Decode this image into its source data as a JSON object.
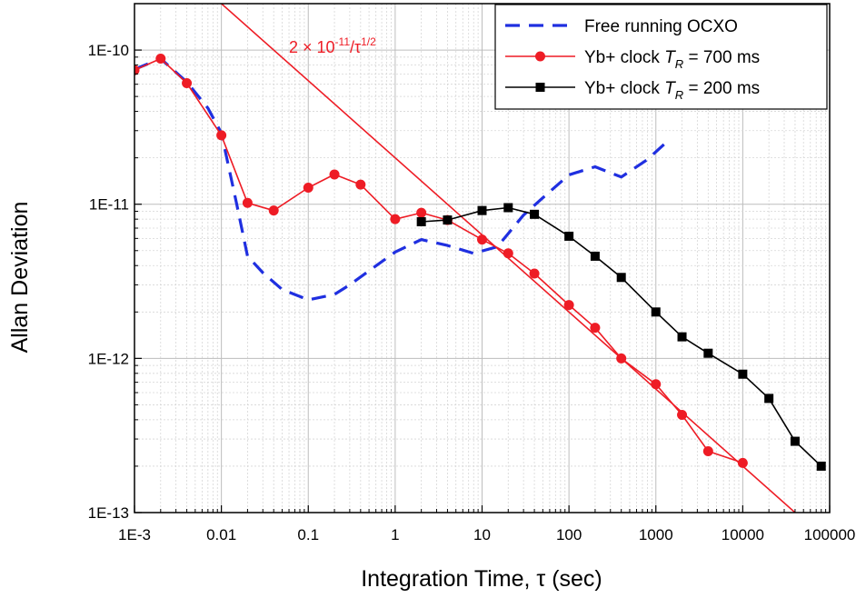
{
  "chart_data": {
    "type": "line",
    "xlabel": "Integration Time, τ (sec)",
    "ylabel": "Allan Deviation",
    "xscale": "log",
    "yscale": "log",
    "xlim": [
      0.001,
      100000
    ],
    "ylim": [
      1e-13,
      2e-10
    ],
    "xticks": [
      0.001,
      0.01,
      0.1,
      1,
      10,
      100,
      1000,
      10000,
      100000
    ],
    "xtick_labels": [
      "1E-3",
      "0.01",
      "0.1",
      "1",
      "10",
      "100",
      "1000",
      "10000",
      "100000"
    ],
    "yticks": [
      1e-13,
      1e-12,
      1e-11,
      1e-10
    ],
    "ytick_labels": [
      "1E-13",
      "1E-12",
      "1E-11",
      "1E-10"
    ],
    "grid": true,
    "legend_position": "top-right",
    "annotation": {
      "text": "2 × 10",
      "exp1": "-11",
      "mid": "/τ",
      "exp2": "1/2",
      "color": "#ee1c25"
    },
    "reference_line": {
      "coefficient": 2e-11,
      "exponent": -0.5,
      "color": "#ee1c25"
    },
    "series": [
      {
        "name": "Free running OCXO",
        "legend_text": "Free running OCXO",
        "style": "dashed",
        "color": "#1f2fe0",
        "x": [
          0.001,
          0.002,
          0.004,
          0.007,
          0.01,
          0.015,
          0.02,
          0.03,
          0.05,
          0.1,
          0.2,
          0.3,
          0.5,
          1,
          2,
          4,
          8,
          15,
          30,
          50,
          100,
          200,
          400,
          800,
          1300
        ],
        "y": [
          7.5e-11,
          8.8e-11,
          6.2e-11,
          4.2e-11,
          2.9e-11,
          1e-11,
          4.6e-12,
          3.6e-12,
          2.8e-12,
          2.4e-12,
          2.6e-12,
          3e-12,
          3.7e-12,
          4.9e-12,
          5.9e-12,
          5.4e-12,
          4.8e-12,
          5.3e-12,
          8.5e-12,
          1.1e-11,
          1.55e-11,
          1.75e-11,
          1.5e-11,
          1.95e-11,
          2.5e-11
        ]
      },
      {
        "name": "Yb+ clock T_R = 700 ms",
        "legend_text": "Yb+ clock ",
        "legend_sym": "T",
        "legend_sub": "R",
        "legend_tail": " = 700 ms",
        "style": "solid",
        "marker": "circle",
        "color": "#ee1c25",
        "x": [
          0.001,
          0.002,
          0.004,
          0.01,
          0.02,
          0.04,
          0.1,
          0.2,
          0.4,
          1,
          2,
          4,
          10,
          20,
          40,
          100,
          200,
          400,
          1000,
          2000,
          4000,
          10000
        ],
        "y": [
          7.4e-11,
          8.8e-11,
          6.1e-11,
          2.8e-11,
          1.02e-11,
          9.1e-12,
          1.28e-11,
          1.56e-11,
          1.34e-11,
          8e-12,
          8.8e-12,
          7.9e-12,
          5.9e-12,
          4.8e-12,
          3.55e-12,
          2.22e-12,
          1.58e-12,
          1e-12,
          6.8e-13,
          4.3e-13,
          2.5e-13,
          2.1e-13
        ]
      },
      {
        "name": "Yb+ clock T_R = 200 ms",
        "legend_text": "Yb+ clock ",
        "legend_sym": "T",
        "legend_sub": "R",
        "legend_tail": " = 200 ms",
        "style": "solid",
        "marker": "square",
        "color": "#000000",
        "x": [
          2,
          4,
          10,
          20,
          40,
          100,
          200,
          400,
          1000,
          2000,
          4000,
          10000,
          20000,
          40000,
          80000
        ],
        "y": [
          7.7e-12,
          7.9e-12,
          9.1e-12,
          9.5e-12,
          8.6e-12,
          6.2e-12,
          4.6e-12,
          3.35e-12,
          2e-12,
          1.38e-12,
          1.08e-12,
          7.9e-13,
          5.5e-13,
          2.9e-13,
          2e-13
        ]
      }
    ]
  }
}
